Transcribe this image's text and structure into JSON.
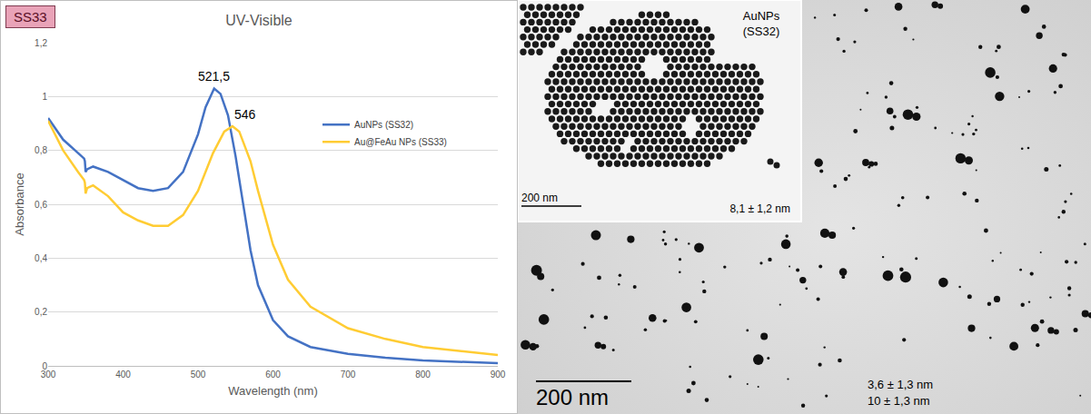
{
  "figure": {
    "label": "SS33"
  },
  "chart_data": {
    "type": "line",
    "title": "UV-Visible",
    "x_label": "Wavelength (nm)",
    "y_label": "Absorbance",
    "xlim": [
      300,
      900
    ],
    "xticks": [
      300,
      400,
      500,
      600,
      700,
      800,
      900
    ],
    "ylim": [
      0,
      1.2
    ],
    "yticks": [
      0,
      {
        "value": 0.2,
        "label": "0,2"
      },
      {
        "value": 0.4,
        "label": "0,4"
      },
      {
        "value": 0.6,
        "label": "0,6"
      },
      {
        "value": 0.8,
        "label": "0,8"
      },
      1,
      {
        "value": 1.2,
        "label": "1,2"
      }
    ],
    "grid": true,
    "legend": "right",
    "series": [
      {
        "name": "AuNPs (SS32)",
        "color": "#4472c4",
        "x": [
          300,
          320,
          340,
          348,
          349,
          350,
          352,
          360,
          380,
          400,
          420,
          440,
          460,
          480,
          500,
          510,
          521.5,
          530,
          540,
          550,
          560,
          570,
          580,
          600,
          620,
          650,
          700,
          750,
          800,
          850,
          900
        ],
        "values": [
          0.92,
          0.84,
          0.79,
          0.77,
          0.76,
          0.72,
          0.73,
          0.74,
          0.72,
          0.69,
          0.66,
          0.65,
          0.66,
          0.72,
          0.86,
          0.96,
          1.03,
          1.01,
          0.93,
          0.78,
          0.6,
          0.43,
          0.3,
          0.17,
          0.11,
          0.07,
          0.045,
          0.03,
          0.02,
          0.015,
          0.01
        ]
      },
      {
        "name": "Au@FeAu NPs (SS33)",
        "color": "#ffcc33",
        "x": [
          300,
          320,
          340,
          348,
          349,
          350,
          352,
          360,
          380,
          400,
          420,
          440,
          460,
          480,
          500,
          520,
          535,
          546,
          555,
          570,
          580,
          600,
          620,
          650,
          700,
          750,
          800,
          850,
          900
        ],
        "values": [
          0.91,
          0.8,
          0.72,
          0.69,
          0.68,
          0.64,
          0.66,
          0.67,
          0.63,
          0.57,
          0.54,
          0.52,
          0.52,
          0.56,
          0.65,
          0.79,
          0.87,
          0.89,
          0.87,
          0.76,
          0.65,
          0.45,
          0.32,
          0.22,
          0.14,
          0.1,
          0.07,
          0.055,
          0.04
        ]
      }
    ],
    "annotations": [
      {
        "text": "521,5",
        "x": 521.5,
        "y": 1.03
      },
      {
        "text": "546",
        "x": 546,
        "y": 0.89
      }
    ]
  },
  "tem": {
    "inset": {
      "label": [
        "AuNPs",
        "(SS32)"
      ],
      "scale_bar": "200 nm",
      "size": "8,1 ± 1,2 nm"
    },
    "main": {
      "scale_bar": "200 nm",
      "sizes": [
        "3,6 ± 1,3 nm",
        "10 ± 1,3 nm"
      ]
    }
  }
}
